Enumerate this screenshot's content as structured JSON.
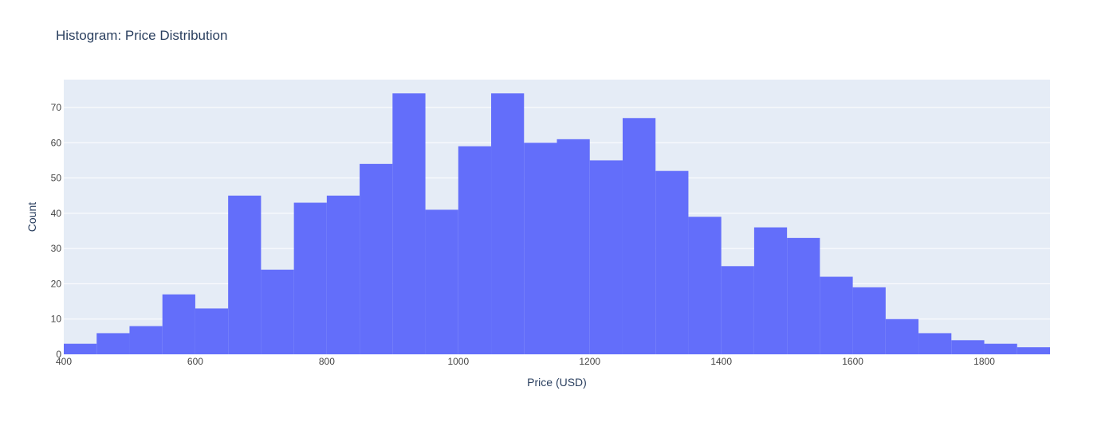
{
  "chart_data": {
    "type": "bar",
    "title": "Histogram: Price Distribution",
    "xlabel": "Price (USD)",
    "ylabel": "Count",
    "xlim": [
      400,
      1900
    ],
    "ylim": [
      0,
      77.9
    ],
    "bin_width": 50,
    "x_ticks": [
      400,
      600,
      800,
      1000,
      1200,
      1400,
      1600,
      1800
    ],
    "y_ticks": [
      0,
      10,
      20,
      30,
      40,
      50,
      60,
      70
    ],
    "bins": [
      {
        "start": 400,
        "end": 450,
        "count": 3
      },
      {
        "start": 450,
        "end": 500,
        "count": 6
      },
      {
        "start": 500,
        "end": 550,
        "count": 8
      },
      {
        "start": 550,
        "end": 600,
        "count": 17
      },
      {
        "start": 600,
        "end": 650,
        "count": 13
      },
      {
        "start": 650,
        "end": 700,
        "count": 45
      },
      {
        "start": 700,
        "end": 750,
        "count": 24
      },
      {
        "start": 750,
        "end": 800,
        "count": 43
      },
      {
        "start": 800,
        "end": 850,
        "count": 45
      },
      {
        "start": 850,
        "end": 900,
        "count": 54
      },
      {
        "start": 900,
        "end": 950,
        "count": 74
      },
      {
        "start": 950,
        "end": 1000,
        "count": 41
      },
      {
        "start": 1000,
        "end": 1050,
        "count": 59
      },
      {
        "start": 1050,
        "end": 1100,
        "count": 74
      },
      {
        "start": 1100,
        "end": 1150,
        "count": 60
      },
      {
        "start": 1150,
        "end": 1200,
        "count": 61
      },
      {
        "start": 1200,
        "end": 1250,
        "count": 55
      },
      {
        "start": 1250,
        "end": 1300,
        "count": 67
      },
      {
        "start": 1300,
        "end": 1350,
        "count": 52
      },
      {
        "start": 1350,
        "end": 1400,
        "count": 39
      },
      {
        "start": 1400,
        "end": 1450,
        "count": 25
      },
      {
        "start": 1450,
        "end": 1500,
        "count": 36
      },
      {
        "start": 1500,
        "end": 1550,
        "count": 33
      },
      {
        "start": 1550,
        "end": 1600,
        "count": 22
      },
      {
        "start": 1600,
        "end": 1650,
        "count": 19
      },
      {
        "start": 1650,
        "end": 1700,
        "count": 10
      },
      {
        "start": 1700,
        "end": 1750,
        "count": 6
      },
      {
        "start": 1750,
        "end": 1800,
        "count": 4
      },
      {
        "start": 1800,
        "end": 1850,
        "count": 3
      },
      {
        "start": 1850,
        "end": 1900,
        "count": 2
      }
    ],
    "grid": true,
    "colors": {
      "bar": "#636efa",
      "plot_background": "#e5ecf6",
      "grid": "#ffffff",
      "text": "#2a3f5f",
      "tick_text": "#444444"
    }
  }
}
